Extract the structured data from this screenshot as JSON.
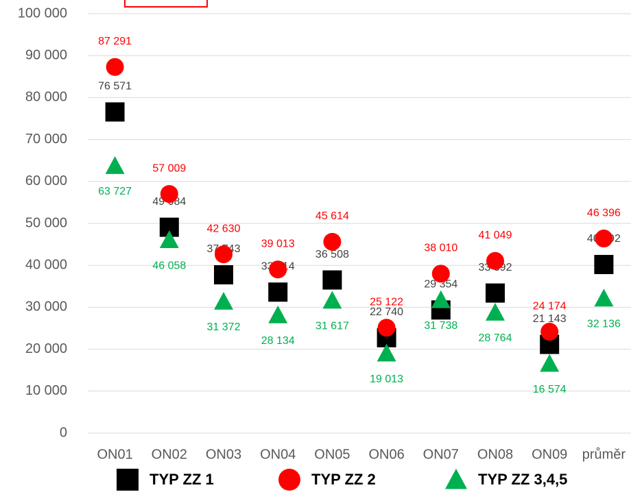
{
  "chart_data": {
    "type": "scatter",
    "categories": [
      "ON01",
      "ON02",
      "ON03",
      "ON04",
      "ON05",
      "ON06",
      "ON07",
      "ON08",
      "ON09",
      "průměr"
    ],
    "series": [
      {
        "name": "TYP ZZ 1",
        "color": "#000000",
        "marker": "square",
        "label_color": "#404040",
        "label_position": "above",
        "values": [
          76571,
          49084,
          37743,
          33614,
          36508,
          22740,
          29354,
          33392,
          21143,
          40192
        ],
        "value_labels": [
          "76 571",
          "49 084",
          "37 743",
          "33 614",
          "36 508",
          "22 740",
          "29 354",
          "33 392",
          "21 143",
          "40 192"
        ]
      },
      {
        "name": "TYP ZZ 2",
        "color": "#ff0000",
        "marker": "circle",
        "label_color": "#ff0000",
        "label_position": "above",
        "values": [
          87291,
          57009,
          42630,
          39013,
          45614,
          25122,
          38010,
          41049,
          24174,
          46396
        ],
        "value_labels": [
          "87 291",
          "57 009",
          "42 630",
          "39 013",
          "45 614",
          "25 122",
          "38 010",
          "41 049",
          "24 174",
          "46 396"
        ]
      },
      {
        "name": "TYP ZZ 3,4,5",
        "color": "#00b050",
        "marker": "triangle",
        "label_color": "#00b050",
        "label_position": "below",
        "values": [
          63727,
          46058,
          31372,
          28134,
          31617,
          19013,
          31738,
          28764,
          16574,
          32136
        ],
        "value_labels": [
          "63 727",
          "46 058",
          "31 372",
          "28 134",
          "31 617",
          "19 013",
          "31 738",
          "28 764",
          "16 574",
          "32 136"
        ]
      }
    ],
    "ylim": [
      0,
      100000
    ],
    "yticks": [
      0,
      {
        "value": 10000,
        "label": "10 000"
      },
      {
        "value": 20000,
        "label": "20 000"
      },
      {
        "value": 30000,
        "label": "30 000"
      },
      {
        "value": 40000,
        "label": "40 000"
      },
      {
        "value": 50000,
        "label": "50 000"
      },
      {
        "value": 60000,
        "label": "60 000"
      },
      {
        "value": 70000,
        "label": "70 000"
      },
      {
        "value": 80000,
        "label": "80 000"
      },
      {
        "value": 90000,
        "label": "90 000"
      },
      {
        "value": 100000,
        "label": "100 000"
      }
    ],
    "grid": true
  }
}
